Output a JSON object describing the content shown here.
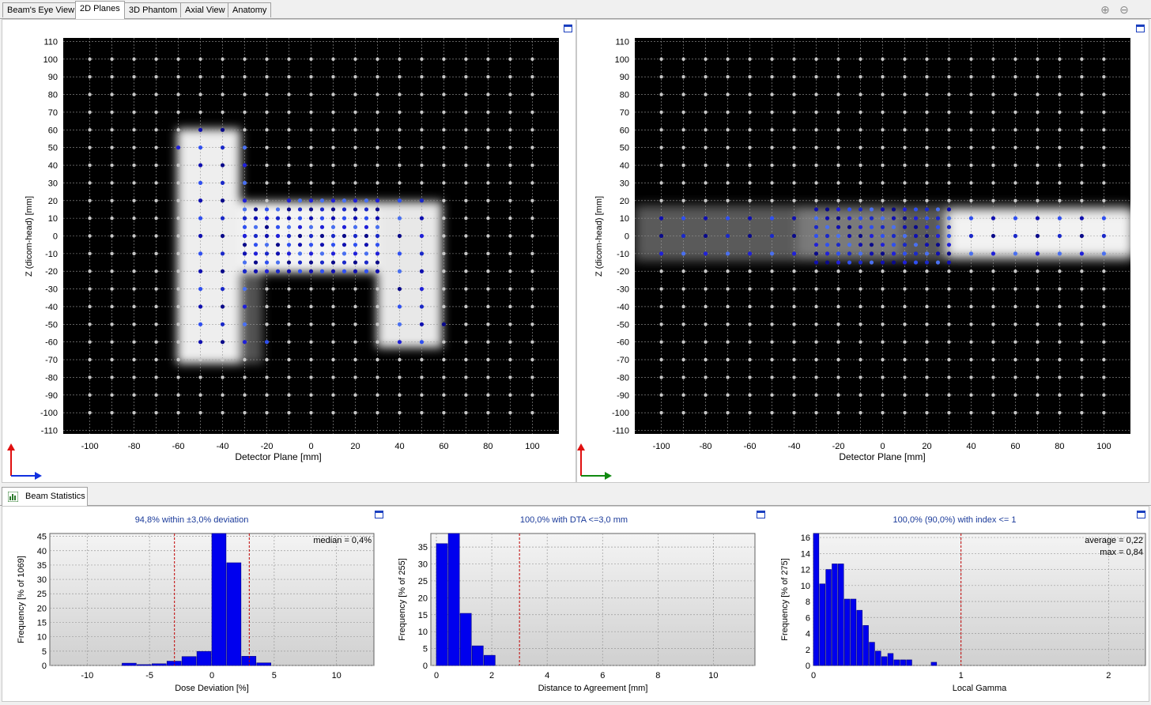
{
  "tabs": [
    "Beam's Eye View",
    "2D Planes",
    "3D Phantom",
    "Axial View",
    "Anatomy"
  ],
  "active_tab": "2D Planes",
  "stat_tab": "Beam Statistics",
  "planes": {
    "left": {
      "xlabel": "Detector Plane [mm]",
      "ylabel": "Z (dicom-head) [mm]"
    },
    "right": {
      "xlabel": "Detector Plane [mm]",
      "ylabel": "Z (dicom-head) [mm]"
    },
    "x_ticks": [
      -100,
      -80,
      -60,
      -40,
      -20,
      0,
      20,
      40,
      60,
      80,
      100
    ],
    "y_ticks": [
      110,
      100,
      90,
      80,
      70,
      60,
      50,
      40,
      30,
      20,
      10,
      0,
      -10,
      -20,
      -30,
      -40,
      -50,
      -60,
      -70,
      -80,
      -90,
      -100,
      -110
    ]
  },
  "chart_data": [
    {
      "type": "bar",
      "title": "94,8% within ±3,0% deviation",
      "xlabel": "Dose Deviation [%]",
      "ylabel": "Frequency [% of 1069]",
      "annotation": "median = 0,4%",
      "xlim": [
        -13,
        13
      ],
      "ylim": [
        0,
        46
      ],
      "x_ticks": [
        -10,
        -5,
        0,
        5,
        10
      ],
      "y_ticks": [
        0,
        5,
        10,
        15,
        20,
        25,
        30,
        35,
        40,
        45
      ],
      "thresholds": [
        -3,
        3
      ],
      "bin_width": 1.2,
      "bins": [
        -7.2,
        -6.0,
        -4.8,
        -3.6,
        -2.4,
        -1.2,
        0.0,
        1.2,
        2.4,
        3.6
      ],
      "values": [
        0.8,
        0.3,
        0.6,
        1.5,
        3.1,
        4.9,
        46,
        35.8,
        3.2,
        0.9
      ]
    },
    {
      "type": "bar",
      "title": "100,0% with DTA <=3,0 mm",
      "xlabel": "Distance to Agreement [mm]",
      "ylabel": "Frequency [% of 255]",
      "xlim": [
        -0.2,
        11.5
      ],
      "ylim": [
        0,
        39
      ],
      "x_ticks": [
        0,
        2,
        4,
        6,
        8,
        10
      ],
      "y_ticks": [
        0,
        5,
        10,
        15,
        20,
        25,
        30,
        35
      ],
      "thresholds": [
        3
      ],
      "bin_width": 0.43,
      "bins": [
        0.0,
        0.43,
        0.86,
        1.29,
        1.72,
        2.15
      ],
      "values": [
        36,
        39,
        15.4,
        5.8,
        3.0,
        0
      ]
    },
    {
      "type": "bar",
      "title": "100,0% (90,0%) with index <= 1",
      "xlabel": "Local Gamma",
      "ylabel": "Frequency [% of 275]",
      "annotations": [
        "average = 0,22",
        "max = 0,84"
      ],
      "xlim": [
        0,
        2.25
      ],
      "ylim": [
        0,
        16.5
      ],
      "x_ticks": [
        0,
        1,
        2
      ],
      "y_ticks": [
        0,
        2,
        4,
        6,
        8,
        10,
        12,
        14,
        16
      ],
      "thresholds": [
        1
      ],
      "bin_width": 0.042,
      "bins": [
        0.0,
        0.042,
        0.084,
        0.126,
        0.168,
        0.21,
        0.252,
        0.294,
        0.336,
        0.378,
        0.42,
        0.462,
        0.504,
        0.546,
        0.588,
        0.63,
        0.672,
        0.714,
        0.798
      ],
      "values": [
        16.5,
        10.2,
        12.0,
        12.7,
        12.7,
        8.3,
        8.3,
        6.9,
        5.0,
        2.9,
        1.8,
        1.1,
        1.5,
        0.7,
        0.7,
        0.7,
        0,
        0,
        0.4
      ]
    }
  ]
}
